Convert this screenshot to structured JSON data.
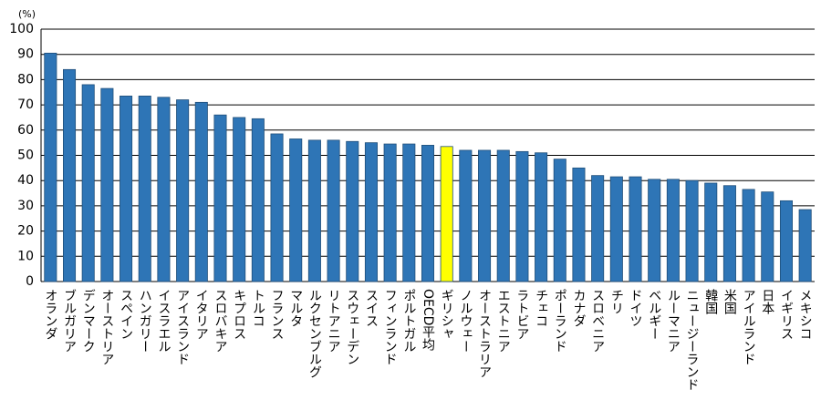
{
  "chart_data": {
    "type": "bar",
    "ylabel": "(%)",
    "categories": [
      "オランダ",
      "ブルガリア",
      "デンマーク",
      "オーストリア",
      "スペイン",
      "ハンガリー",
      "イスラエル",
      "アイスランド",
      "イタリア",
      "スロバキア",
      "キプロス",
      "トルコ",
      "フランス",
      "マルタ",
      "ルクセンブルグ",
      "リトアニア",
      "スウェーデン",
      "スイス",
      "フィンランド",
      "ポルトガル",
      "OECD平均",
      "ギリシャ",
      "ノルウェー",
      "オーストラリア",
      "エストニア",
      "ラトビア",
      "チェコ",
      "ポーランド",
      "カナダ",
      "スロベニア",
      "チリ",
      "ドイツ",
      "ベルギー",
      "ルーマニア",
      "ニュージーランド",
      "韓国",
      "米国",
      "アイルランド",
      "日本",
      "イギリス",
      "メキシコ"
    ],
    "values": [
      90.5,
      84,
      78,
      76.5,
      73.5,
      73.5,
      73,
      72,
      71,
      66,
      65,
      64.5,
      58.5,
      56.5,
      56,
      56,
      55.5,
      55,
      54.5,
      54.5,
      54,
      53.5,
      52,
      52,
      52,
      51.5,
      51,
      48.5,
      45,
      42,
      41.5,
      41.5,
      40.5,
      40.5,
      40,
      39,
      38,
      36.5,
      35.5,
      32,
      28.5
    ],
    "color": "#2e75b6",
    "highlight": {
      "index": 21,
      "color": "#ffff00"
    },
    "ylim": [
      0,
      100
    ],
    "yticks": [
      0,
      10,
      20,
      30,
      40,
      50,
      60,
      70,
      80,
      90,
      100
    ],
    "grid": true
  }
}
